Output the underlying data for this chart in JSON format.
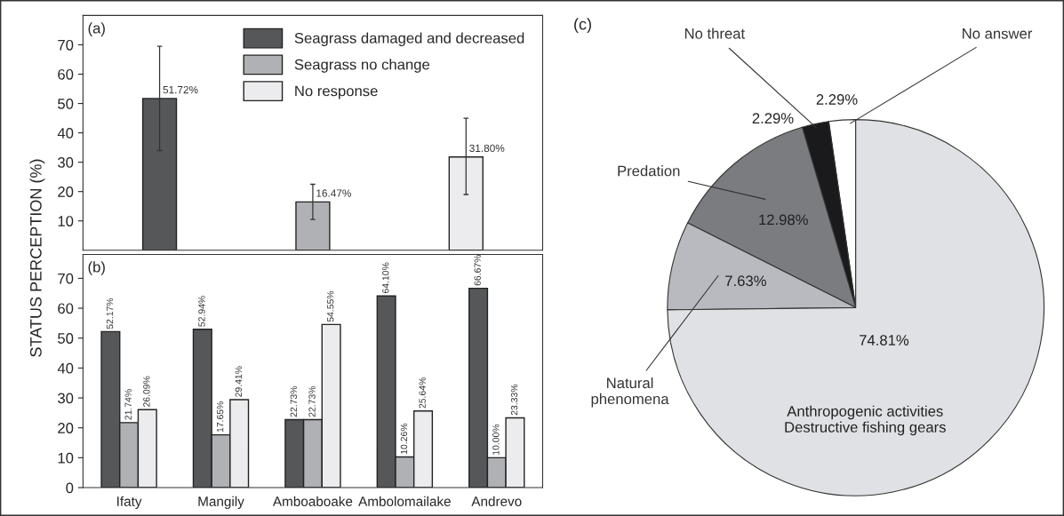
{
  "chart_data": [
    {
      "type": "bar",
      "title": "(a)",
      "ylabel": "STATUS PERCEPTION (%)",
      "categories": [
        null,
        null,
        null
      ],
      "ylim": [
        0,
        80
      ],
      "yticks": [
        10,
        20,
        30,
        40,
        50,
        60,
        70
      ],
      "tick_labels": "y",
      "legend": "top right",
      "series": [
        {
          "name": "Seagrass damaged and decreased",
          "color": "#555759",
          "values": [
            51.72,
            null,
            null
          ],
          "errors": [
            [
              34,
              69.5
            ],
            null,
            null
          ],
          "value_labels": [
            "51.72%",
            null,
            null
          ]
        },
        {
          "name": "Seagrass no change",
          "color": "#b0b1b5",
          "values": [
            null,
            16.47,
            null
          ],
          "errors": [
            null,
            [
              10.5,
              22.5
            ],
            null
          ],
          "value_labels": [
            null,
            "16.47%",
            null
          ]
        },
        {
          "name": "No response",
          "color": "#ececee",
          "values": [
            null,
            null,
            31.8
          ],
          "errors": [
            null,
            null,
            [
              19,
              45
            ]
          ],
          "value_labels": [
            null,
            null,
            "31.80%"
          ]
        }
      ]
    },
    {
      "type": "bar",
      "title": "(b)",
      "categories": [
        "Ifaty",
        "Mangily",
        "Amboaboake",
        "Ambolomailake",
        "Andrevo"
      ],
      "ylim": [
        0,
        78
      ],
      "yticks": [
        0,
        10,
        20,
        30,
        40,
        50,
        60,
        70
      ],
      "series": [
        {
          "color": "#555759",
          "values": [
            52.17,
            52.94,
            22.73,
            64.1,
            66.67
          ],
          "value_labels": [
            "52.17%",
            "52.94%",
            "22.73%",
            "64.10%",
            "66.67%"
          ]
        },
        {
          "color": "#b0b1b5",
          "values": [
            21.74,
            17.65,
            22.73,
            10.26,
            10.0
          ],
          "value_labels": [
            "21.74%",
            "17.65%",
            "22.73%",
            "10.26%",
            "10.00%"
          ]
        },
        {
          "color": "#ececee",
          "values": [
            26.09,
            29.41,
            54.55,
            25.64,
            23.33
          ],
          "value_labels": [
            "26.09%",
            "29.41%",
            "54.55%",
            "25.64%",
            "23.33%"
          ]
        }
      ]
    },
    {
      "type": "pie",
      "title": "(c)",
      "categories": [
        "No answer",
        "No threat",
        "Predation",
        "Natural\nphenomena",
        "Anthropogenic activities\nDestructive fishing gears"
      ],
      "values": [
        2.29,
        2.29,
        12.98,
        7.63,
        74.81
      ],
      "colors": [
        "#ffffff",
        "#1a1a1c",
        "#7b7c80",
        "#b9babf",
        "#dfe1e4"
      ],
      "value_labels": [
        "2.29%",
        "2.29%",
        "12.98%",
        "7.63%",
        "74.81%"
      ]
    }
  ]
}
